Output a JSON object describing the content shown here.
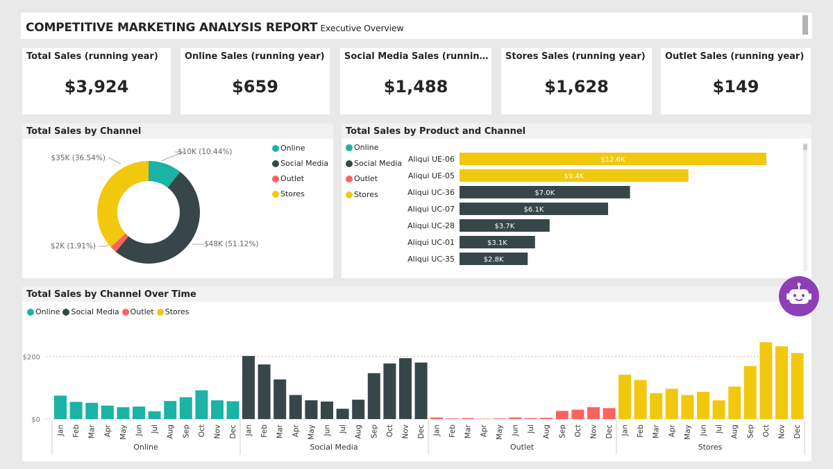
{
  "header": {
    "title": "COMPETITIVE MARKETING ANALYSIS REPORT",
    "subtitle": "Executive Overview"
  },
  "kpis": [
    {
      "label": "Total Sales (running year)",
      "value": "$3,924"
    },
    {
      "label": "Online Sales (running year)",
      "value": "$659"
    },
    {
      "label": "Social Media Sales (running y...",
      "value": "$1,488"
    },
    {
      "label": "Stores Sales (running year)",
      "value": "$1,628"
    },
    {
      "label": "Outlet Sales (running year)",
      "value": "$149"
    }
  ],
  "colors": {
    "Online": "#1ab3a6",
    "Social Media": "#374649",
    "Outlet": "#fd625e",
    "Stores": "#f2c80f"
  },
  "chart_data": [
    {
      "type": "pie",
      "title": "Total Sales by Channel",
      "legend": [
        "Online",
        "Social Media",
        "Outlet",
        "Stores"
      ],
      "slices": [
        {
          "name": "Online",
          "value": 10,
          "label": "$10K (10.44%)"
        },
        {
          "name": "Social Media",
          "value": 48,
          "label": "$48K (51.12%)"
        },
        {
          "name": "Outlet",
          "value": 2,
          "label": "$2K (1.91%)"
        },
        {
          "name": "Stores",
          "value": 35,
          "label": "$35K (36.54%)"
        }
      ]
    },
    {
      "type": "bar",
      "title": "Total Sales by Product and Channel",
      "legend": [
        "Online",
        "Social Media",
        "Outlet",
        "Stores"
      ],
      "categories": [
        "Aliqui UE-06",
        "Aliqui UE-05",
        "Aliqui UC-36",
        "Aliqui UC-07",
        "Aliqui UC-28",
        "Aliqui UC-01",
        "Aliqui UC-35"
      ],
      "values": [
        12.6,
        9.4,
        7.0,
        6.1,
        3.7,
        3.1,
        2.8
      ],
      "labels": [
        "$12.6K",
        "$9.4K",
        "$7.0K",
        "$6.1K",
        "$3.7K",
        "$3.1K",
        "$2.8K"
      ],
      "channels": [
        "Stores",
        "Stores",
        "Social Media",
        "Social Media",
        "Social Media",
        "Social Media",
        "Social Media"
      ]
    },
    {
      "type": "bar",
      "title": "Total Sales by Channel Over Time",
      "legend": [
        "Online",
        "Social Media",
        "Outlet",
        "Stores"
      ],
      "months": [
        "Jan",
        "Feb",
        "Mar",
        "Apr",
        "May",
        "Jun",
        "Jul",
        "Aug",
        "Sep",
        "Oct",
        "Nov",
        "Dec"
      ],
      "y_ticks": [
        "$200",
        "$0"
      ],
      "ylim": [
        0,
        250
      ],
      "series": [
        {
          "name": "Online",
          "values": [
            75,
            55,
            52,
            43,
            38,
            40,
            25,
            58,
            70,
            92,
            60,
            57
          ]
        },
        {
          "name": "Social Media",
          "values": [
            202,
            175,
            127,
            77,
            60,
            56,
            33,
            62,
            147,
            178,
            195,
            181
          ]
        },
        {
          "name": "Outlet",
          "values": [
            5,
            2,
            3,
            1,
            2,
            5,
            3,
            4,
            26,
            30,
            38,
            35
          ]
        },
        {
          "name": "Stores",
          "values": [
            142,
            125,
            83,
            97,
            77,
            87,
            60,
            104,
            170,
            246,
            233,
            211
          ]
        }
      ]
    }
  ]
}
